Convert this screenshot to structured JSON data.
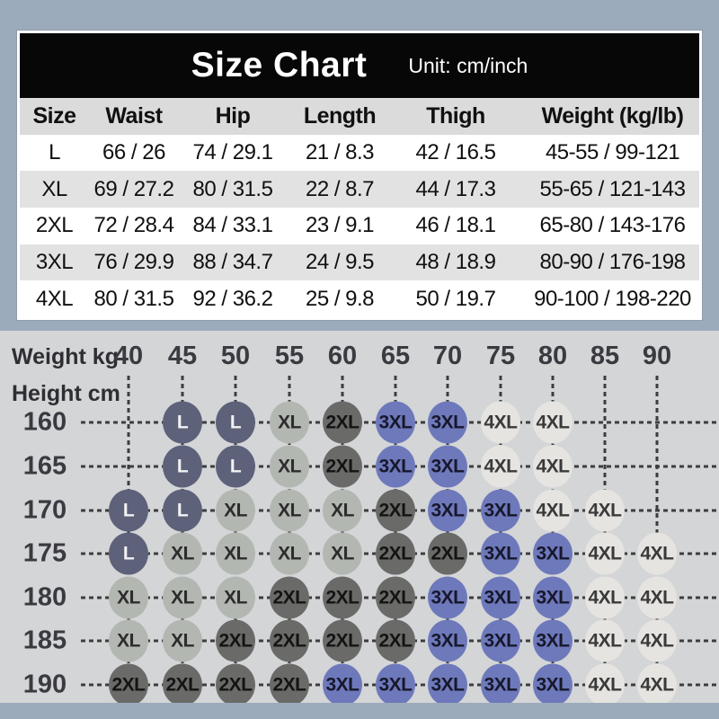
{
  "header": {
    "title": "Size Chart",
    "unit": "Unit: cm/inch"
  },
  "table": {
    "columns": [
      "Size",
      "Waist",
      "Hip",
      "Length",
      "Thigh",
      "Weight (kg/lb)"
    ],
    "rows": [
      [
        "L",
        "66 / 26",
        "74 / 29.1",
        "21 / 8.3",
        "42 / 16.5",
        "45-55 / 99-121"
      ],
      [
        "XL",
        "69 / 27.2",
        "80 / 31.5",
        "22 / 8.7",
        "44 / 17.3",
        "55-65 / 121-143"
      ],
      [
        "2XL",
        "72 / 28.4",
        "84 / 33.1",
        "23 / 9.1",
        "46 / 18.1",
        "65-80 / 143-176"
      ],
      [
        "3XL",
        "76 / 29.9",
        "88 / 34.7",
        "24 / 9.5",
        "48 / 18.9",
        "80-90 / 176-198"
      ],
      [
        "4XL",
        "80 / 31.5",
        "92 / 36.2",
        "25 / 9.8",
        "50 / 19.7",
        "90-100 / 198-220"
      ]
    ]
  },
  "chart_data": {
    "type": "heatmap",
    "x_axis_label": "Weight kg",
    "y_axis_label": "Height cm",
    "weights": [
      40,
      45,
      50,
      55,
      60,
      65,
      70,
      75,
      80,
      85,
      90
    ],
    "heights": [
      160,
      165,
      170,
      175,
      180,
      185,
      190
    ],
    "matrix": [
      [
        null,
        "L",
        "L",
        "XL",
        "2XL",
        "3XL",
        "3XL",
        "4XL",
        "4XL",
        null,
        null
      ],
      [
        null,
        "L",
        "L",
        "XL",
        "2XL",
        "3XL",
        "3XL",
        "4XL",
        "4XL",
        null,
        null
      ],
      [
        "L",
        "L",
        "XL",
        "XL",
        "XL",
        "2XL",
        "3XL",
        "3XL",
        "4XL",
        "4XL",
        null
      ],
      [
        "L",
        "XL",
        "XL",
        "XL",
        "XL",
        "2XL",
        "2XL",
        "3XL",
        "3XL",
        "4XL",
        "4XL"
      ],
      [
        "XL",
        "XL",
        "XL",
        "2XL",
        "2XL",
        "2XL",
        "3XL",
        "3XL",
        "3XL",
        "4XL",
        "4XL"
      ],
      [
        "XL",
        "XL",
        "2XL",
        "2XL",
        "2XL",
        "2XL",
        "3XL",
        "3XL",
        "3XL",
        "4XL",
        "4XL"
      ],
      [
        "2XL",
        "2XL",
        "2XL",
        "2XL",
        "3XL",
        "3XL",
        "3XL",
        "3XL",
        "3XL",
        "4XL",
        "4XL"
      ]
    ],
    "size_colors": {
      "L": {
        "fill": "#5d6179",
        "text": "#f2f2f4"
      },
      "XL": {
        "fill": "#b3b7b2",
        "text": "#2c2c2c"
      },
      "2XL": {
        "fill": "#6a6a68",
        "text": "#141414"
      },
      "3XL": {
        "fill": "#6e79bb",
        "text": "#17182c"
      },
      "4XL": {
        "fill": "#e6e4e1",
        "text": "#3a3a3a"
      }
    }
  },
  "colors": {
    "frame": "#9cabbc",
    "chart_background": "#d3d5d7",
    "header_background": "#070707",
    "table_header_row": "#dbdbdb",
    "table_alt_row": "#e2e2e2"
  }
}
